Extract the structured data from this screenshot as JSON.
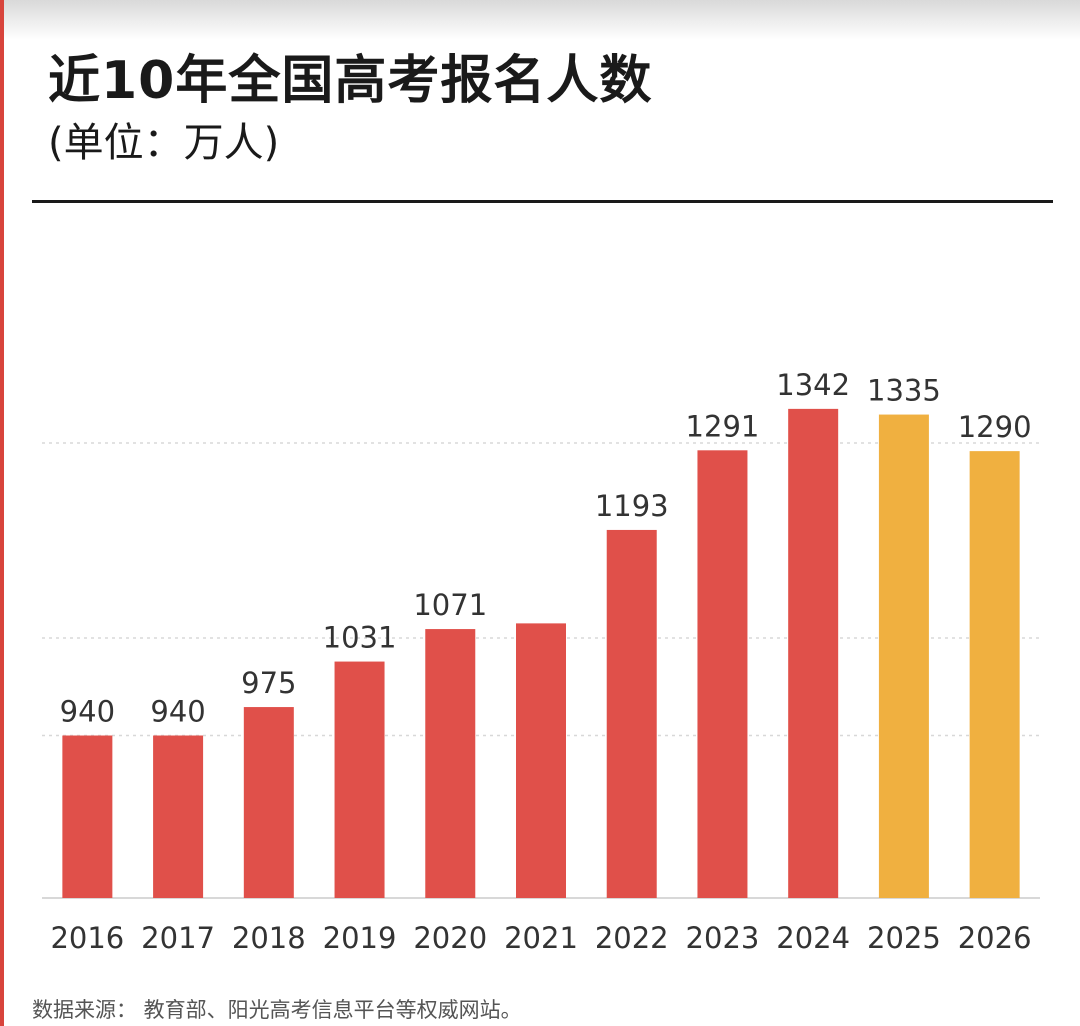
{
  "header": {
    "title": "近10年全国高考报名人数",
    "subtitle": "(单位：万人)"
  },
  "source": "数据来源：  教育部、阳光高考信息平台等权威网站。",
  "colors": {
    "actual": "#e0504a",
    "forecast": "#f0b040",
    "text": "#333333",
    "grid": "#d8d8d8"
  },
  "chart_data": {
    "type": "bar",
    "title": "近10年全国高考报名人数",
    "subtitle": "(单位：万人)",
    "categories": [
      "2016",
      "2017",
      "2018",
      "2019",
      "2020",
      "2021",
      "2022",
      "2023",
      "2024",
      "2025",
      "2026"
    ],
    "values": [
      940,
      940,
      975,
      1031,
      1071,
      1078,
      1193,
      1291,
      1342,
      1335,
      1290
    ],
    "data_labels": [
      "940",
      "940",
      "975",
      "1031",
      "1071",
      "",
      "1193",
      "1291",
      "1342",
      "1335",
      "1290"
    ],
    "bar_colors": [
      "#e0504a",
      "#e0504a",
      "#e0504a",
      "#e0504a",
      "#e0504a",
      "#e0504a",
      "#e0504a",
      "#e0504a",
      "#e0504a",
      "#f0b040",
      "#f0b040"
    ],
    "xlabel": "",
    "ylabel": "",
    "ylim": [
      740,
      1400
    ],
    "gridlines": [
      940,
      1060,
      1300
    ],
    "grid": true,
    "legend": "none"
  }
}
